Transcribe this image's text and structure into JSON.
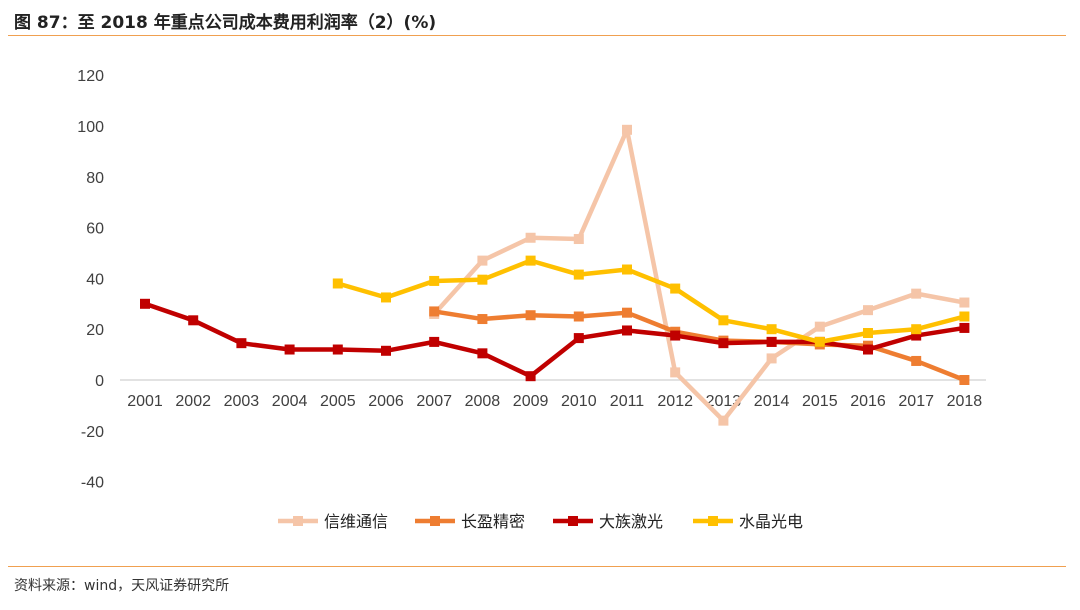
{
  "header": {
    "title": "图 87：至 2018 年重点公司成本费用利润率（2）(%)"
  },
  "footer": {
    "source": "资料来源：wind，天风证券研究所"
  },
  "chart_data": {
    "type": "line",
    "title": "图 87：至 2018 年重点公司成本费用利润率（2）(%)",
    "xlabel": "",
    "ylabel": "",
    "x": [
      "2001",
      "2002",
      "2003",
      "2004",
      "2005",
      "2006",
      "2007",
      "2008",
      "2009",
      "2010",
      "2011",
      "2012",
      "2013",
      "2014",
      "2015",
      "2016",
      "2017",
      "2018"
    ],
    "ylim": [
      -40,
      120
    ],
    "yticks": [
      -40,
      -20,
      0,
      20,
      40,
      60,
      80,
      100,
      120
    ],
    "grid": false,
    "legend": "bottom",
    "series": [
      {
        "name": "信维通信",
        "color": "#f5c5a8",
        "values": [
          null,
          null,
          null,
          null,
          null,
          null,
          26,
          47,
          56,
          55.5,
          98.5,
          3,
          -16,
          8.5,
          21,
          27.5,
          34,
          30.5
        ]
      },
      {
        "name": "长盈精密",
        "color": "#ee7d31",
        "values": [
          null,
          null,
          null,
          null,
          null,
          null,
          27,
          24,
          25.5,
          25,
          26.5,
          19,
          15.5,
          15,
          14,
          13.5,
          7.5,
          0
        ]
      },
      {
        "name": "大族激光",
        "color": "#c00000",
        "values": [
          30,
          23.5,
          14.5,
          12,
          12,
          11.5,
          15,
          10.5,
          1.5,
          16.5,
          19.5,
          17.5,
          14.5,
          15,
          15,
          12,
          17.5,
          20.5
        ]
      },
      {
        "name": "水晶光电",
        "color": "#ffc000",
        "values": [
          null,
          null,
          null,
          null,
          38,
          32.5,
          39,
          39.5,
          47,
          41.5,
          43.5,
          36,
          23.5,
          20,
          15,
          18.5,
          20,
          25
        ]
      }
    ]
  }
}
